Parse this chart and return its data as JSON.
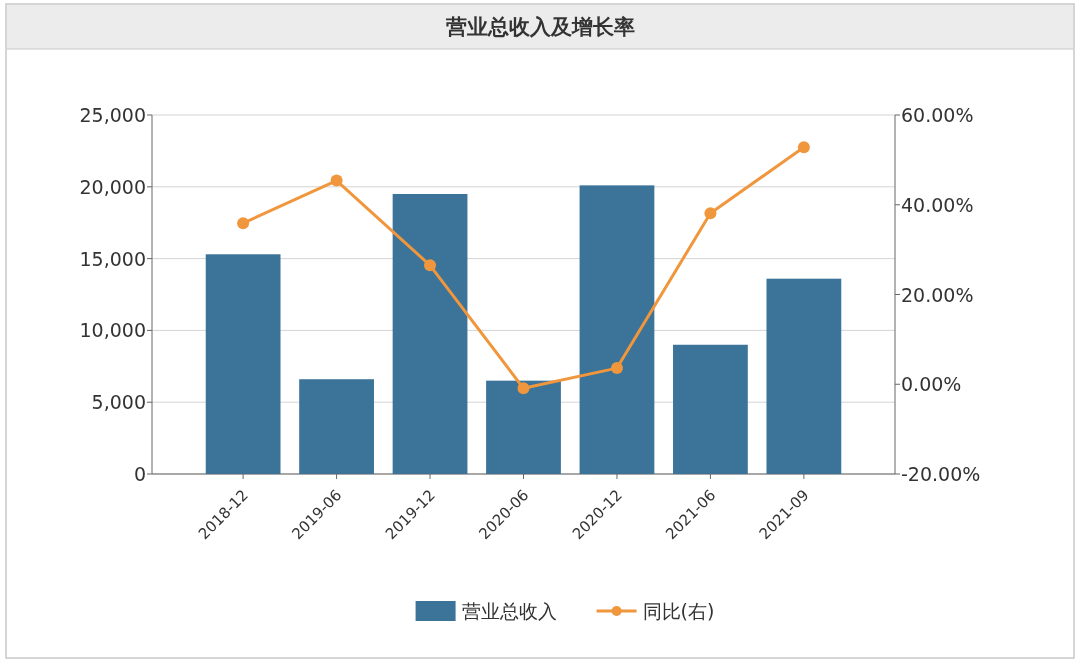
{
  "chart_data": {
    "type": "bar",
    "title": "营业总收入及增长率",
    "categories": [
      "2018-12",
      "2019-06",
      "2019-12",
      "2020-06",
      "2020-12",
      "2021-06",
      "2021-09"
    ],
    "series": [
      {
        "name": "营业总收入",
        "color": "#3b7399",
        "values": [
          15300,
          6600,
          19500,
          6500,
          20100,
          9000,
          13600
        ]
      },
      {
        "name": "同比(右)",
        "type": "line",
        "axis": "y2",
        "color": "#f0963c",
        "marker": "circle",
        "values": [
          35.9,
          45.4,
          26.5,
          -0.9,
          3.6,
          38.1,
          52.8
        ]
      }
    ],
    "ylim": [
      0,
      25000
    ],
    "yticks": [
      {
        "value": 0,
        "label": "0"
      },
      {
        "value": 5000,
        "label": "5,000"
      },
      {
        "value": 10000,
        "label": "10,000"
      },
      {
        "value": 15000,
        "label": "15,000"
      },
      {
        "value": 20000,
        "label": "20,000"
      },
      {
        "value": 25000,
        "label": "25,000"
      }
    ],
    "y2lim": [
      -20,
      60
    ],
    "y2ticks": [
      {
        "value": -20,
        "label": "-20.00%"
      },
      {
        "value": 0,
        "label": "0.00%"
      },
      {
        "value": 20,
        "label": "20.00%"
      },
      {
        "value": 40,
        "label": "40.00%"
      },
      {
        "value": 60,
        "label": "60.00%"
      }
    ],
    "grid": "y",
    "legend": "bottom"
  }
}
